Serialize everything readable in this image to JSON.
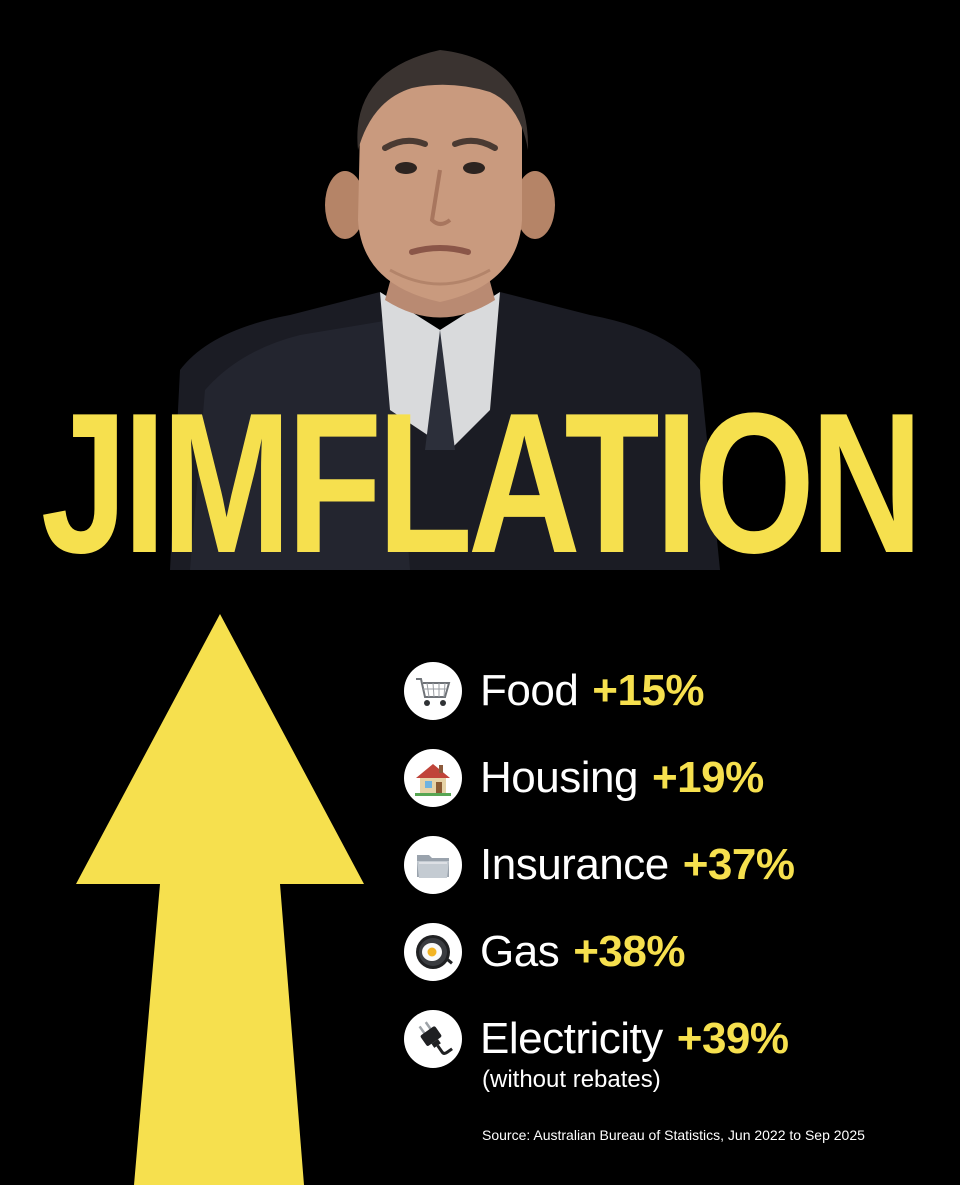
{
  "colors": {
    "background": "#000000",
    "accent_yellow": "#f6e04e",
    "text_white": "#ffffff"
  },
  "headline": "JIMFLATION",
  "portrait": {
    "description_icon": "man-portrait-photo"
  },
  "items": [
    {
      "icon": "shopping-cart-icon",
      "label": "Food",
      "value": "+15%"
    },
    {
      "icon": "house-icon",
      "label": "Housing",
      "value": "+19%"
    },
    {
      "icon": "folder-icon",
      "label": "Insurance",
      "value": "+37%"
    },
    {
      "icon": "fried-egg-pan-icon",
      "label": "Gas",
      "value": "+38%"
    },
    {
      "icon": "electric-plug-icon",
      "label": "Electricity",
      "value": "+39%"
    }
  ],
  "note": "(without rebates)",
  "source": "Source: Australian Bureau of Statistics, Jun 2022 to Sep 2025"
}
